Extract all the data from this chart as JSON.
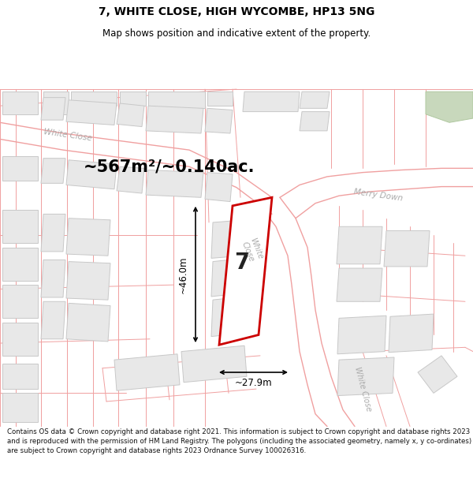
{
  "title": "7, WHITE CLOSE, HIGH WYCOMBE, HP13 5NG",
  "subtitle": "Map shows position and indicative extent of the property.",
  "area_text": "~567m²/~0.140ac.",
  "dim_width": "~27.9m",
  "dim_height": "~46.0m",
  "plot_number": "7",
  "footer": "Contains OS data © Crown copyright and database right 2021. This information is subject to Crown copyright and database rights 2023 and is reproduced with the permission of HM Land Registry. The polygons (including the associated geometry, namely x, y co-ordinates) are subject to Crown copyright and database rights 2023 Ordnance Survey 100026316.",
  "map_bg": "#ffffff",
  "building_fill": "#e8e8e8",
  "building_stroke": "#c8c8c8",
  "plot_fill": "#ffffff",
  "plot_stroke": "#cc0000",
  "road_line": "#f0a0a0",
  "road_outline": "#d08080",
  "label_color": "#b0b0b0",
  "dim_color": "#000000",
  "area_color": "#000000",
  "green_fill": "#c8d8bc",
  "green_stroke": "#b0c8a0",
  "title_size": 10,
  "subtitle_size": 8.5,
  "area_size": 15,
  "dim_size": 8.5,
  "footer_size": 6.2
}
